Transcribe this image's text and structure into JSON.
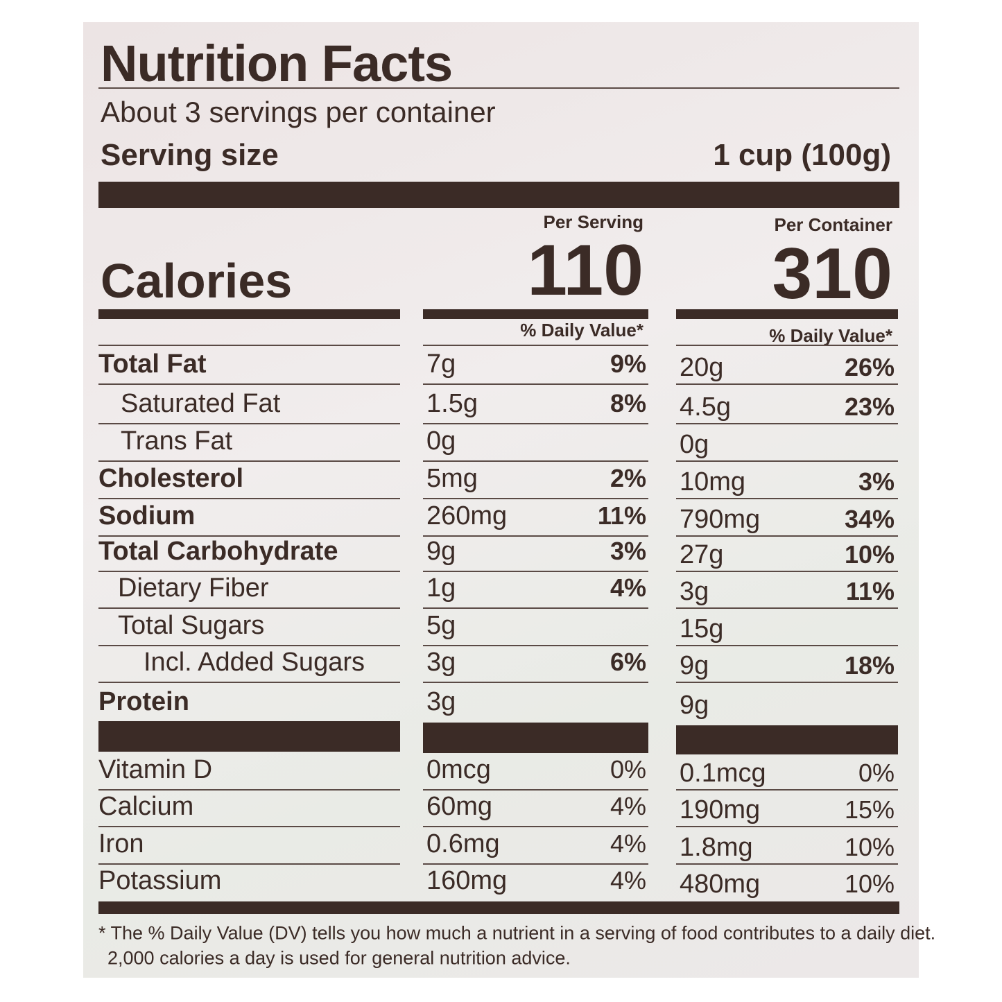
{
  "title": "Nutrition Facts",
  "servings": "About 3 servings per container",
  "serving_size": {
    "label": "Serving size",
    "value": "1 cup (100g)"
  },
  "columns": [
    "Per Serving",
    "Per Container"
  ],
  "calories": {
    "label": "Calories",
    "values": [
      "110",
      "310"
    ]
  },
  "dv_headers": [
    "% Daily Value*",
    "% Daily Value*"
  ],
  "nutrients": [
    {
      "label": "Total Fat",
      "serving": [
        "7g",
        "9%"
      ],
      "container": [
        "20g",
        "26%"
      ]
    },
    {
      "label": "Saturated Fat",
      "serving": [
        "1.5g",
        "8%"
      ],
      "container": [
        "4.5g",
        "23%"
      ]
    },
    {
      "label": "Trans Fat",
      "serving": [
        "0g"
      ],
      "container": [
        "0g"
      ]
    },
    {
      "label": "Cholesterol",
      "serving": [
        "5mg",
        "2%"
      ],
      "container": [
        "10mg",
        "3%"
      ]
    },
    {
      "label": "Sodium",
      "serving": [
        "260mg",
        "11%"
      ],
      "container": [
        "790mg",
        "34%"
      ]
    },
    {
      "label": "Total Carbohydrate",
      "serving": [
        "9g",
        "3%"
      ],
      "container": [
        "27g",
        "10%"
      ]
    },
    {
      "label": "Dietary Fiber",
      "serving": [
        "1g",
        "4%"
      ],
      "container": [
        "3g",
        "11%"
      ]
    },
    {
      "label": "Total Sugars",
      "serving": [
        "5g"
      ],
      "container": [
        "15g"
      ]
    },
    {
      "label": "Incl. Added Sugars",
      "serving": [
        "3g",
        "6%"
      ],
      "container": [
        "9g",
        "18%"
      ]
    },
    {
      "label": "Protein",
      "serving": [
        "3g"
      ],
      "container": [
        "9g"
      ]
    }
  ],
  "vitamins": [
    {
      "label": "Vitamin D",
      "serving": [
        "0mcg",
        "0%"
      ],
      "container": [
        "0.1mcg",
        "0%"
      ]
    },
    {
      "label": "Calcium",
      "serving": [
        "60mg",
        "4%"
      ],
      "container": [
        "190mg",
        "15%"
      ]
    },
    {
      "label": "Iron",
      "serving": [
        "0.6mg",
        "4%"
      ],
      "container": [
        "1.8mg",
        "10%"
      ]
    },
    {
      "label": "Potassium",
      "serving": [
        "160mg",
        "4%"
      ],
      "container": [
        "480mg",
        "10%"
      ]
    }
  ],
  "footnote": [
    "* The % Daily Value (DV) tells you how much a nutrient in a serving of food contributes to a daily diet.",
    "2,000 calories a day is used for general nutrition advice."
  ]
}
